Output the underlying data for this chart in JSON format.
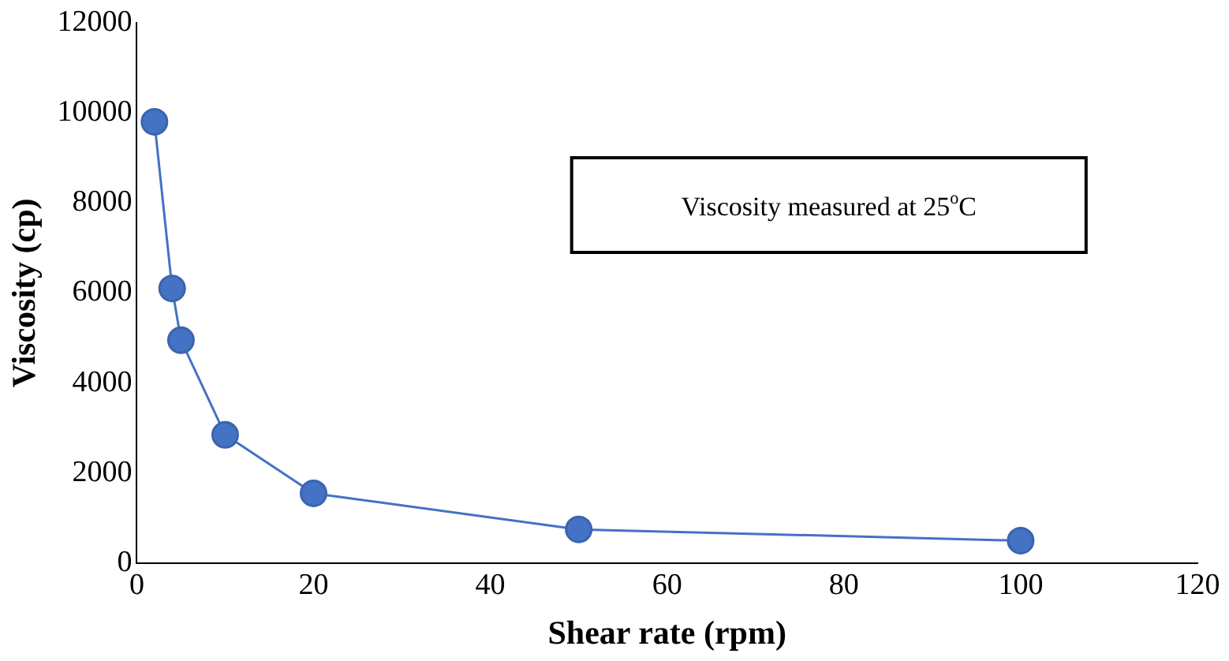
{
  "chart_data": {
    "type": "scatter",
    "xlabel": "Shear rate (rpm)",
    "ylabel": "Viscosity (cp)",
    "x": [
      2,
      4,
      5,
      10,
      20,
      50,
      100
    ],
    "series": [
      {
        "type": "line",
        "color": "#4472c4",
        "values": [
          9800,
          6100,
          4950,
          2850,
          1550,
          750,
          500
        ]
      }
    ],
    "xlim": [
      0,
      120
    ],
    "xticks": [
      0,
      20,
      40,
      60,
      80,
      100,
      120
    ],
    "ylim": [
      0,
      12000
    ],
    "yticks": [
      0,
      2000,
      4000,
      6000,
      8000,
      10000,
      12000
    ],
    "grid": false,
    "legend": false,
    "marker": "circle",
    "line_style": "solid",
    "annotations": [
      "Viscosity measured at 25$^{o}$C"
    ]
  }
}
